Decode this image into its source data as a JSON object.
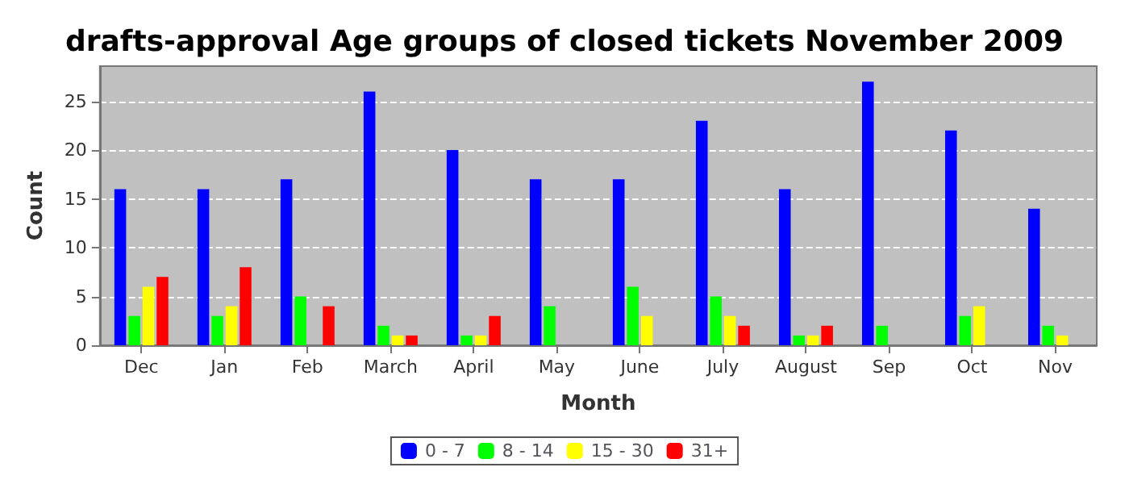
{
  "chart_data": {
    "type": "bar",
    "title": "drafts-approval Age groups of closed tickets November 2009",
    "xlabel": "Month",
    "ylabel": "Count",
    "categories": [
      "Dec",
      "Jan",
      "Feb",
      "March",
      "April",
      "May",
      "June",
      "July",
      "August",
      "Sep",
      "Oct",
      "Nov"
    ],
    "series": [
      {
        "name": "0 - 7",
        "color": "#0000ff",
        "values": [
          16,
          16,
          17,
          26,
          20,
          17,
          17,
          23,
          16,
          27,
          22,
          14
        ]
      },
      {
        "name": "8 - 14",
        "color": "#00ff00",
        "values": [
          3,
          3,
          5,
          2,
          1,
          4,
          6,
          5,
          1,
          2,
          3,
          2
        ]
      },
      {
        "name": "15 - 30",
        "color": "#ffff00",
        "values": [
          6,
          4,
          0,
          1,
          1,
          0,
          3,
          3,
          1,
          0,
          4,
          1
        ]
      },
      {
        "name": "31+",
        "color": "#ff0000",
        "values": [
          7,
          8,
          4,
          1,
          3,
          0,
          0,
          2,
          2,
          0,
          0,
          0
        ]
      }
    ],
    "ylim": [
      0,
      28.6
    ],
    "yticks": [
      0,
      5,
      10,
      15,
      20,
      25
    ],
    "grid": "y",
    "legend": "bottom"
  }
}
